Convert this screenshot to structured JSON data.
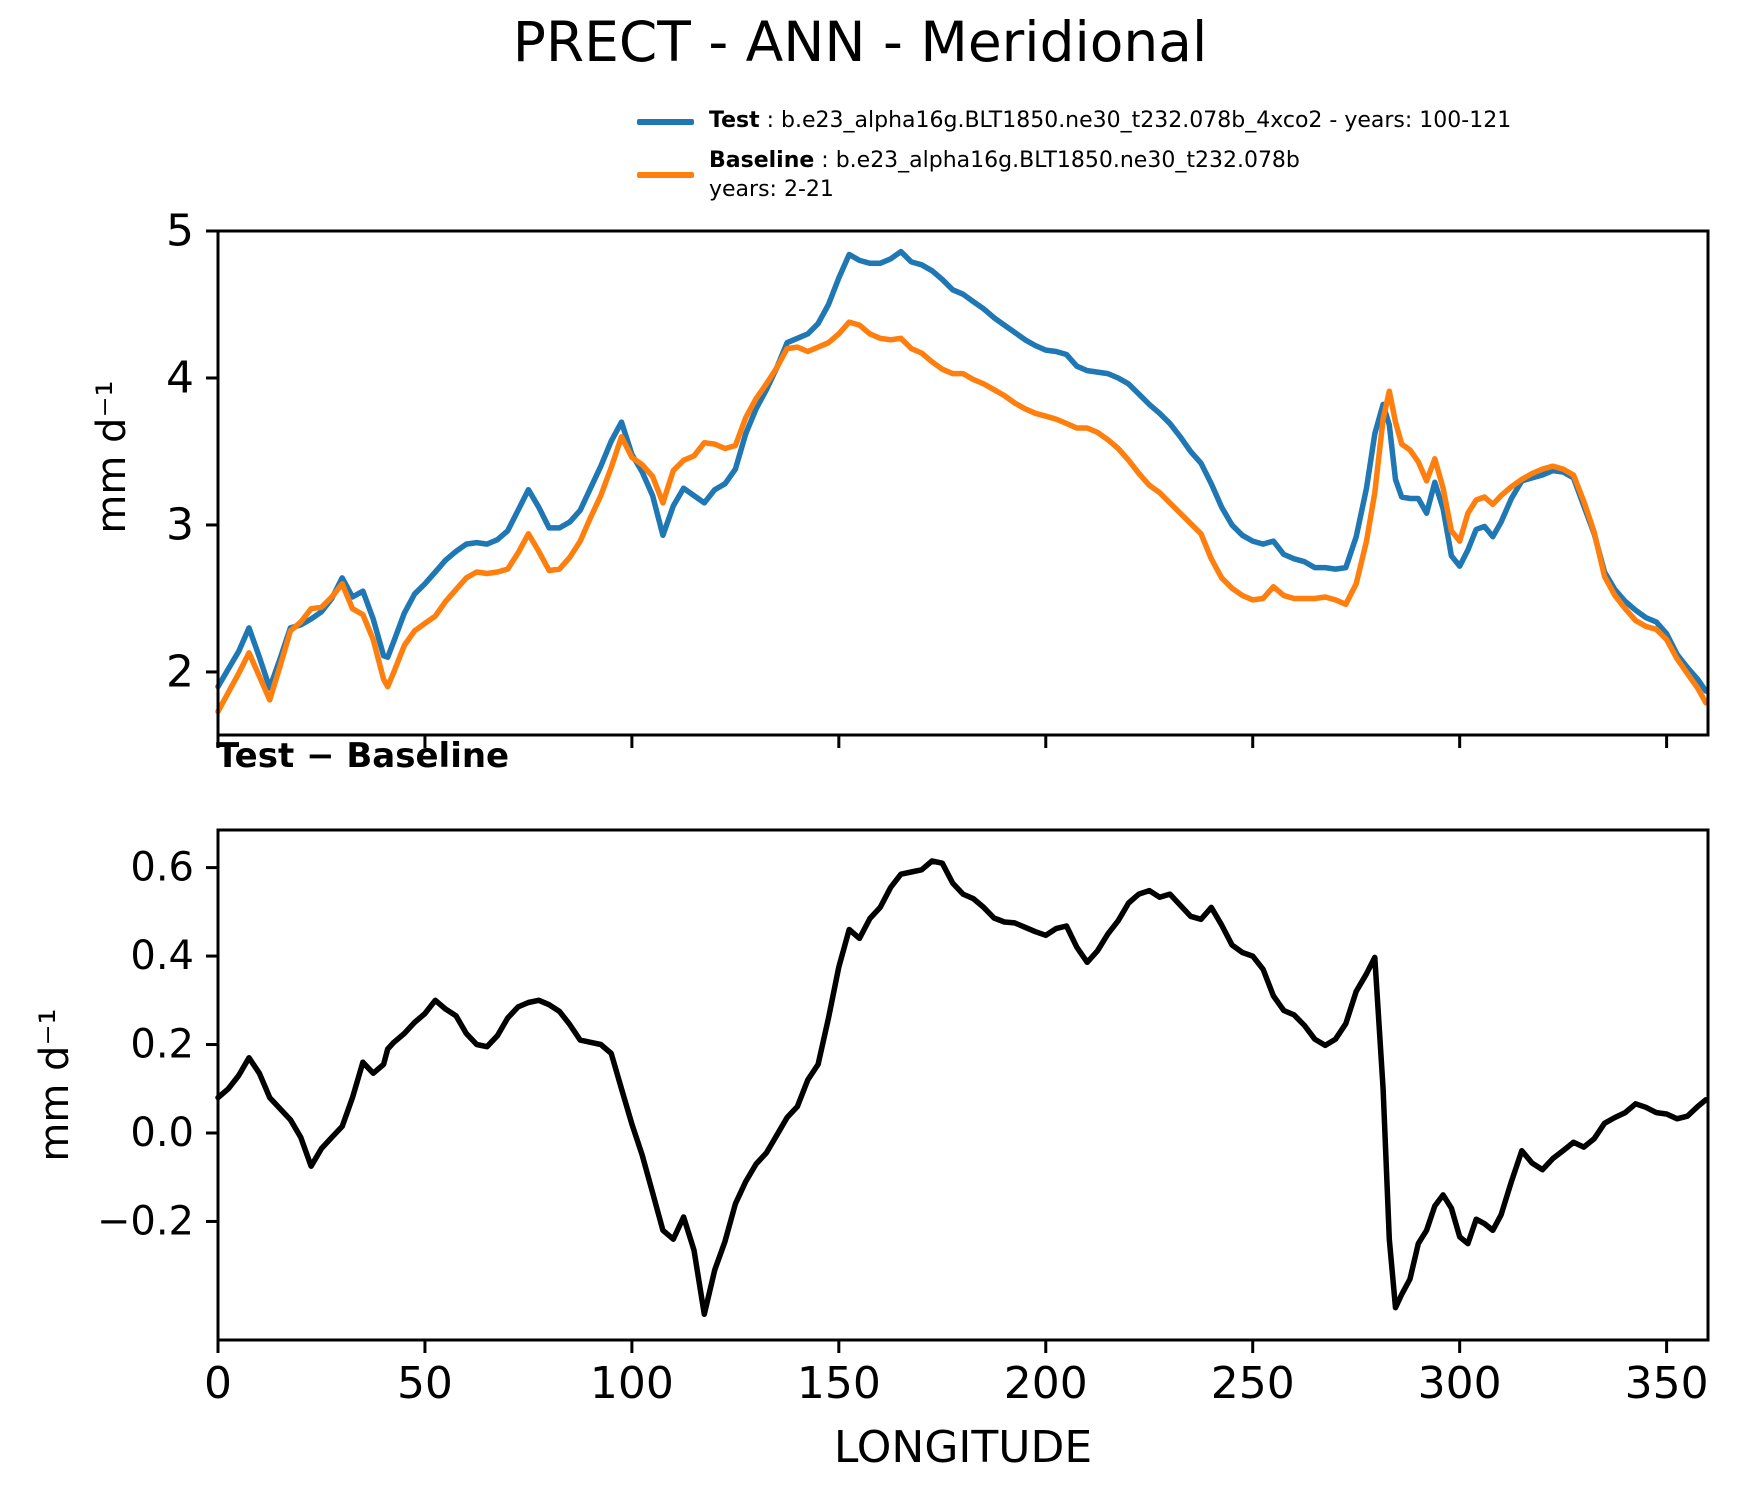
{
  "title": "PRECT - ANN - Meridional",
  "legend": {
    "test_label": "Test",
    "test_desc": " : b.e23_alpha16g.BLT1850.ne30_t232.078b_4xco2 - years: 100-121",
    "baseline_label": "Baseline",
    "baseline_desc": " : b.e23_alpha16g.BLT1850.ne30_t232.078b",
    "baseline_years": "years: 2-21"
  },
  "colors": {
    "test": "#1f77b4",
    "baseline": "#ff7f0e",
    "diff": "#000000",
    "axes": "#000000"
  },
  "chart_data": {
    "type": "line",
    "x_label": "LONGITUDE",
    "xlim": [
      0,
      360
    ],
    "xticks": [
      0,
      50,
      100,
      150,
      200,
      250,
      300,
      350
    ],
    "xticklabels": [
      "0",
      "50",
      "100",
      "150",
      "200",
      "250",
      "300",
      "350"
    ],
    "x": [
      0,
      2.5,
      5,
      7.5,
      10,
      12.5,
      15,
      17.5,
      20,
      22.5,
      25,
      27.5,
      30,
      32.5,
      35,
      37.5,
      40,
      41,
      42.5,
      45,
      47.5,
      50,
      52.5,
      55,
      57.5,
      60,
      62.5,
      65,
      67.5,
      70,
      72.5,
      75,
      77.5,
      80,
      82.5,
      85,
      87.5,
      90,
      92.5,
      95,
      97.5,
      100,
      102.5,
      105,
      107.5,
      110,
      112.5,
      115,
      117.5,
      120,
      122.5,
      125,
      127.5,
      130,
      132.5,
      135,
      137.5,
      140,
      142.5,
      145,
      147.5,
      150,
      152.5,
      155,
      157.5,
      160,
      162.5,
      165,
      167.5,
      170,
      172.5,
      175,
      177.5,
      180,
      182.5,
      185,
      187.5,
      190,
      192.5,
      195,
      197.5,
      200,
      202.5,
      205,
      207.5,
      210,
      212.5,
      215,
      217.5,
      220,
      222.5,
      225,
      227.5,
      230,
      232.5,
      235,
      237.5,
      240,
      242.5,
      245,
      247.5,
      250,
      252.5,
      255,
      257.5,
      260,
      262.5,
      265,
      267.5,
      270,
      272.5,
      275,
      277.5,
      279.5,
      281.5,
      283,
      284.5,
      286,
      288,
      290,
      292,
      294,
      296,
      298,
      300,
      302,
      304,
      306,
      308,
      310,
      312.5,
      315,
      317.5,
      320,
      322.5,
      325,
      327.5,
      330,
      332.5,
      335,
      337.5,
      340,
      342.5,
      345,
      347.5,
      350,
      352.5,
      355,
      357.5,
      359.5
    ],
    "panels": [
      {
        "name": "main",
        "ylabel": "mm d⁻¹",
        "ylim": [
          1.571,
          5.0
        ],
        "yticks": [
          2,
          3,
          4,
          5
        ],
        "yticklabels": [
          "2",
          "3",
          "4",
          "5"
        ],
        "show_xtick_labels": false,
        "series": [
          {
            "name": "Test",
            "color": "#1f77b4",
            "values": [
              1.9,
              2.02,
              2.14,
              2.3,
              2.1,
              1.89,
              2.09,
              2.3,
              2.32,
              2.36,
              2.41,
              2.5,
              2.64,
              2.51,
              2.55,
              2.36,
              2.11,
              2.1,
              2.21,
              2.4,
              2.53,
              2.6,
              2.68,
              2.76,
              2.82,
              2.87,
              2.88,
              2.87,
              2.9,
              2.96,
              3.1,
              3.24,
              3.12,
              2.98,
              2.98,
              3.02,
              3.1,
              3.25,
              3.4,
              3.57,
              3.7,
              3.48,
              3.36,
              3.2,
              2.93,
              3.13,
              3.25,
              3.2,
              3.15,
              3.24,
              3.28,
              3.38,
              3.62,
              3.79,
              3.92,
              4.07,
              4.24,
              4.27,
              4.3,
              4.37,
              4.5,
              4.68,
              4.84,
              4.8,
              4.78,
              4.78,
              4.81,
              4.86,
              4.79,
              4.77,
              4.73,
              4.67,
              4.6,
              4.57,
              4.52,
              4.47,
              4.41,
              4.36,
              4.31,
              4.26,
              4.22,
              4.19,
              4.18,
              4.16,
              4.08,
              4.05,
              4.04,
              4.03,
              4.0,
              3.96,
              3.89,
              3.82,
              3.76,
              3.69,
              3.6,
              3.5,
              3.42,
              3.28,
              3.12,
              3.0,
              2.93,
              2.89,
              2.87,
              2.89,
              2.8,
              2.77,
              2.75,
              2.71,
              2.71,
              2.7,
              2.71,
              2.92,
              3.25,
              3.62,
              3.82,
              3.68,
              3.31,
              3.19,
              3.18,
              3.18,
              3.08,
              3.29,
              3.11,
              2.79,
              2.72,
              2.83,
              2.97,
              2.99,
              2.92,
              3.02,
              3.18,
              3.3,
              3.32,
              3.34,
              3.37,
              3.36,
              3.32,
              3.13,
              2.94,
              2.68,
              2.56,
              2.48,
              2.42,
              2.37,
              2.34,
              2.26,
              2.12,
              2.03,
              1.95,
              1.87
            ]
          },
          {
            "name": "Baseline",
            "color": "#ff7f0e",
            "values": [
              1.73,
              1.86,
              1.99,
              2.13,
              1.97,
              1.81,
              2.04,
              2.28,
              2.34,
              2.43,
              2.44,
              2.51,
              2.6,
              2.43,
              2.39,
              2.22,
              1.95,
              1.9,
              2.0,
              2.18,
              2.28,
              2.33,
              2.38,
              2.48,
              2.56,
              2.64,
              2.68,
              2.67,
              2.68,
              2.7,
              2.81,
              2.94,
              2.82,
              2.69,
              2.7,
              2.78,
              2.89,
              3.05,
              3.2,
              3.39,
              3.6,
              3.46,
              3.41,
              3.33,
              3.15,
              3.37,
              3.44,
              3.47,
              3.56,
              3.55,
              3.52,
              3.54,
              3.73,
              3.86,
              3.96,
              4.07,
              4.2,
              4.21,
              4.18,
              4.21,
              4.24,
              4.3,
              4.38,
              4.36,
              4.3,
              4.27,
              4.26,
              4.27,
              4.2,
              4.17,
              4.11,
              4.06,
              4.03,
              4.03,
              3.99,
              3.96,
              3.92,
              3.88,
              3.83,
              3.79,
              3.76,
              3.74,
              3.72,
              3.69,
              3.66,
              3.66,
              3.63,
              3.58,
              3.52,
              3.44,
              3.35,
              3.27,
              3.22,
              3.15,
              3.08,
              3.01,
              2.94,
              2.77,
              2.64,
              2.57,
              2.52,
              2.49,
              2.5,
              2.58,
              2.52,
              2.5,
              2.5,
              2.5,
              2.51,
              2.49,
              2.46,
              2.6,
              2.89,
              3.22,
              3.72,
              3.91,
              3.7,
              3.55,
              3.51,
              3.43,
              3.3,
              3.45,
              3.25,
              2.96,
              2.89,
              3.08,
              3.17,
              3.19,
              3.14,
              3.2,
              3.26,
              3.31,
              3.35,
              3.38,
              3.4,
              3.38,
              3.34,
              3.16,
              2.95,
              2.65,
              2.52,
              2.43,
              2.35,
              2.31,
              2.29,
              2.22,
              2.09,
              1.99,
              1.89,
              1.79
            ]
          }
        ]
      },
      {
        "name": "difference",
        "title": "Test − Baseline",
        "ylabel": "mm d⁻¹",
        "ylim": [
          -0.468,
          0.685
        ],
        "yticks": [
          -0.2,
          0.0,
          0.2,
          0.4,
          0.6
        ],
        "yticklabels": [
          "−0.2",
          "0.0",
          "0.2",
          "0.4",
          "0.6"
        ],
        "show_xtick_labels": true,
        "series": [
          {
            "name": "Test − Baseline",
            "color": "#000000",
            "values": [
              0.08,
              0.1,
              0.13,
              0.17,
              0.135,
              0.08,
              0.055,
              0.03,
              -0.01,
              -0.075,
              -0.035,
              -0.01,
              0.015,
              0.08,
              0.16,
              0.135,
              0.155,
              0.19,
              0.205,
              0.225,
              0.25,
              0.27,
              0.3,
              0.28,
              0.265,
              0.225,
              0.2,
              0.195,
              0.22,
              0.26,
              0.285,
              0.295,
              0.3,
              0.29,
              0.275,
              0.245,
              0.21,
              0.205,
              0.2,
              0.18,
              0.1,
              0.02,
              -0.05,
              -0.135,
              -0.22,
              -0.24,
              -0.19,
              -0.265,
              -0.41,
              -0.31,
              -0.245,
              -0.16,
              -0.11,
              -0.07,
              -0.045,
              -0.005,
              0.035,
              0.06,
              0.12,
              0.155,
              0.26,
              0.375,
              0.46,
              0.44,
              0.485,
              0.51,
              0.555,
              0.585,
              0.59,
              0.595,
              0.615,
              0.61,
              0.565,
              0.54,
              0.53,
              0.51,
              0.486,
              0.477,
              0.475,
              0.465,
              0.455,
              0.447,
              0.462,
              0.468,
              0.42,
              0.386,
              0.412,
              0.45,
              0.48,
              0.52,
              0.54,
              0.548,
              0.533,
              0.54,
              0.515,
              0.49,
              0.483,
              0.51,
              0.47,
              0.425,
              0.408,
              0.4,
              0.37,
              0.31,
              0.277,
              0.267,
              0.243,
              0.212,
              0.198,
              0.212,
              0.247,
              0.32,
              0.36,
              0.397,
              0.1,
              -0.24,
              -0.395,
              -0.365,
              -0.33,
              -0.25,
              -0.22,
              -0.165,
              -0.14,
              -0.17,
              -0.235,
              -0.25,
              -0.195,
              -0.205,
              -0.22,
              -0.185,
              -0.11,
              -0.04,
              -0.068,
              -0.083,
              -0.058,
              -0.04,
              -0.021,
              -0.032,
              -0.013,
              0.022,
              0.035,
              0.046,
              0.066,
              0.058,
              0.046,
              0.043,
              0.032,
              0.038,
              0.06,
              0.075
            ]
          }
        ]
      }
    ]
  }
}
